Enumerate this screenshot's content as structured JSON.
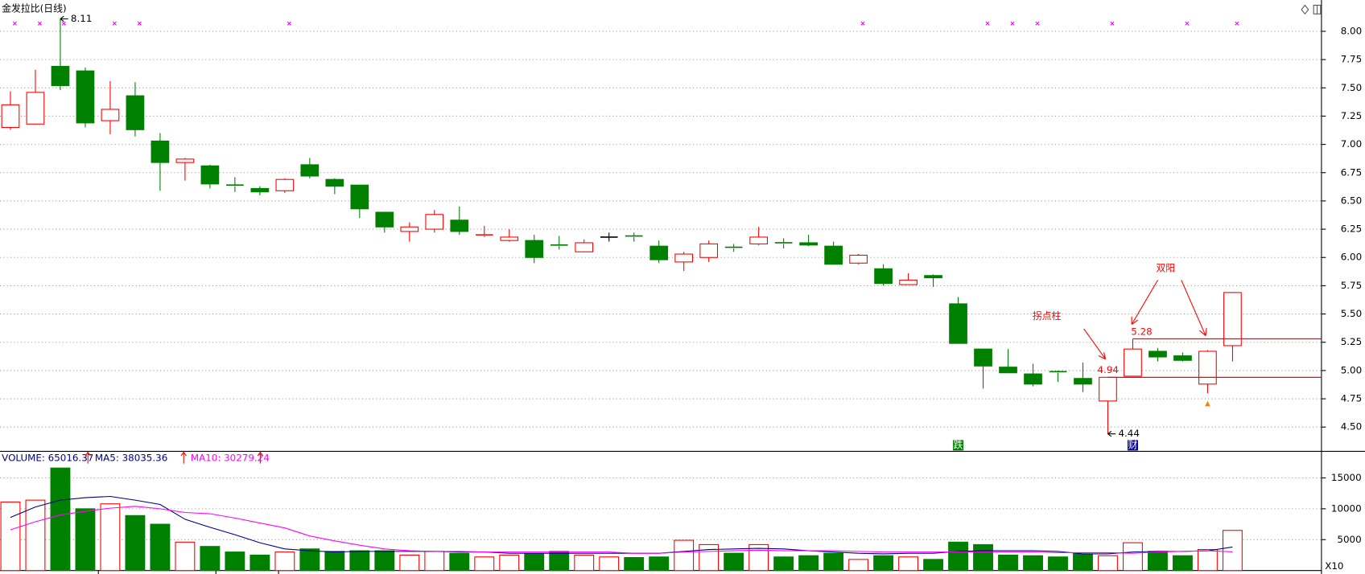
{
  "chart_data": [
    {
      "type": "candlestick",
      "title": "金发拉比(日线)",
      "open": [
        7.15,
        7.18,
        7.69,
        7.65,
        7.21,
        7.43,
        7.03,
        6.84,
        6.81,
        6.64,
        6.61,
        6.59,
        6.82,
        6.69,
        6.64,
        6.4,
        6.23,
        6.25,
        6.33,
        6.19,
        6.15,
        6.15,
        6.11,
        6.05,
        6.18,
        6.19,
        6.1,
        5.96,
        6.0,
        6.09,
        6.12,
        6.13,
        6.13,
        6.1,
        5.95,
        5.9,
        5.76,
        5.84,
        5.59,
        5.19,
        5.03,
        4.97,
        4.99,
        4.93,
        4.73,
        4.95,
        5.17,
        5.13,
        4.88,
        5.22
      ],
      "high": [
        7.47,
        7.66,
        8.11,
        7.68,
        7.56,
        7.55,
        7.1,
        6.88,
        6.82,
        6.71,
        6.63,
        6.7,
        6.88,
        6.7,
        6.64,
        6.4,
        6.31,
        6.42,
        6.45,
        6.28,
        6.25,
        6.2,
        6.19,
        6.16,
        6.22,
        6.22,
        6.15,
        6.05,
        6.15,
        6.12,
        6.27,
        6.17,
        6.2,
        6.14,
        6.03,
        5.94,
        5.86,
        5.85,
        5.65,
        5.19,
        5.19,
        5.06,
        5.0,
        5.07,
        4.94,
        5.28,
        5.2,
        5.16,
        5.18,
        5.69
      ],
      "low": [
        7.13,
        7.18,
        7.48,
        7.15,
        7.09,
        7.07,
        6.59,
        6.68,
        6.61,
        6.58,
        6.55,
        6.57,
        6.7,
        6.56,
        6.35,
        6.22,
        6.14,
        6.22,
        6.2,
        6.18,
        6.14,
        5.95,
        6.07,
        6.05,
        6.14,
        6.14,
        5.95,
        5.88,
        5.96,
        6.05,
        6.11,
        6.08,
        6.1,
        5.94,
        5.94,
        5.75,
        5.76,
        5.74,
        5.24,
        4.84,
        4.98,
        4.86,
        4.9,
        4.81,
        4.44,
        4.95,
        5.08,
        5.08,
        4.8,
        5.08
      ],
      "close": [
        7.35,
        7.46,
        7.52,
        7.19,
        7.31,
        7.13,
        6.84,
        6.87,
        6.65,
        6.63,
        6.58,
        6.69,
        6.72,
        6.63,
        6.43,
        6.27,
        6.27,
        6.38,
        6.23,
        6.2,
        6.18,
        6.0,
        6.1,
        6.13,
        6.18,
        6.18,
        5.98,
        6.03,
        6.12,
        6.08,
        6.18,
        6.12,
        6.11,
        5.94,
        6.02,
        5.77,
        5.8,
        5.82,
        5.24,
        5.04,
        4.98,
        4.88,
        4.98,
        4.88,
        4.94,
        5.19,
        5.12,
        5.09,
        5.17,
        5.69
      ],
      "up_color": "#ff0000",
      "down_color": "#008000",
      "ylim": [
        4.285,
        8.277
      ],
      "yticks": [
        {
          "value": 8,
          "label": "8.00"
        },
        {
          "value": 7.75,
          "label": "7.75"
        },
        {
          "value": 7.5,
          "label": "7.50"
        },
        {
          "value": 7.25,
          "label": "7.25"
        },
        {
          "value": 7,
          "label": "7.00"
        },
        {
          "value": 6.75,
          "label": "6.75"
        },
        {
          "value": 6.5,
          "label": "6.50"
        },
        {
          "value": 6.25,
          "label": "6.25"
        },
        {
          "value": 6,
          "label": "6.00"
        },
        {
          "value": 5.75,
          "label": "5.75"
        },
        {
          "value": 5.5,
          "label": "5.50"
        },
        {
          "value": 5.25,
          "label": "5.25"
        },
        {
          "value": 5,
          "label": "5.00"
        },
        {
          "value": 4.75,
          "label": "4.75"
        },
        {
          "value": 4.5,
          "label": "4.50"
        }
      ],
      "grid": true,
      "annotations": [
        "拐点柱",
        "双阳"
      ],
      "events": [
        "跌",
        "财"
      ]
    },
    {
      "type": "bar",
      "unit_label": "X10",
      "series": [
        {
          "name": "VOLUME: 65016.37",
          "color": "#000080",
          "values": [
            11100,
            11400,
            16600,
            10000,
            10800,
            8900,
            7500,
            4600,
            3900,
            3000,
            2500,
            3000,
            3500,
            3100,
            3200,
            3200,
            2500,
            3100,
            2800,
            2200,
            2500,
            2700,
            3100,
            2500,
            2200,
            2100,
            2200,
            4900,
            4200,
            2800,
            4200,
            2200,
            2400,
            2800,
            1800,
            2400,
            2200,
            1800,
            4600,
            4200,
            2500,
            2400,
            2200,
            2700,
            2400,
            4500,
            3100,
            2400,
            3400,
            6502
          ]
        },
        {
          "name": "MA5: 38035.36",
          "color": "#000080",
          "values": [
            8600,
            10300,
            11400,
            11800,
            12000,
            11400,
            10700,
            8300,
            7000,
            5800,
            4500,
            3500,
            3200,
            3000,
            3100,
            3100,
            3100,
            3100,
            3000,
            3000,
            2800,
            2800,
            2800,
            2800,
            2800,
            2800,
            2800,
            3100,
            3400,
            3500,
            3600,
            3500,
            3200,
            3000,
            2800,
            2700,
            2800,
            2800,
            3100,
            3200,
            3200,
            3200,
            3100,
            2700,
            2700,
            3000,
            3100,
            3100,
            3200,
            3804
          ]
        },
        {
          "name": "MA10: 30279.24",
          "color": "#ff00ff",
          "values": [
            6600,
            7900,
            9000,
            9600,
            10100,
            10400,
            10000,
            9400,
            9200,
            8500,
            7700,
            6900,
            5600,
            4800,
            4100,
            3500,
            3200,
            3100,
            3100,
            3000,
            3000,
            3000,
            3000,
            3000,
            3000,
            2800,
            2800,
            3000,
            3100,
            3200,
            3300,
            3200,
            3200,
            3200,
            3100,
            3000,
            3000,
            3000,
            3000,
            3000,
            3000,
            3000,
            2900,
            2900,
            2900,
            2800,
            3000,
            3100,
            3200,
            3028
          ]
        }
      ],
      "ylim": [
        0,
        19300
      ],
      "yticks": [
        5000,
        10000,
        15000
      ],
      "grid": true
    }
  ]
}
